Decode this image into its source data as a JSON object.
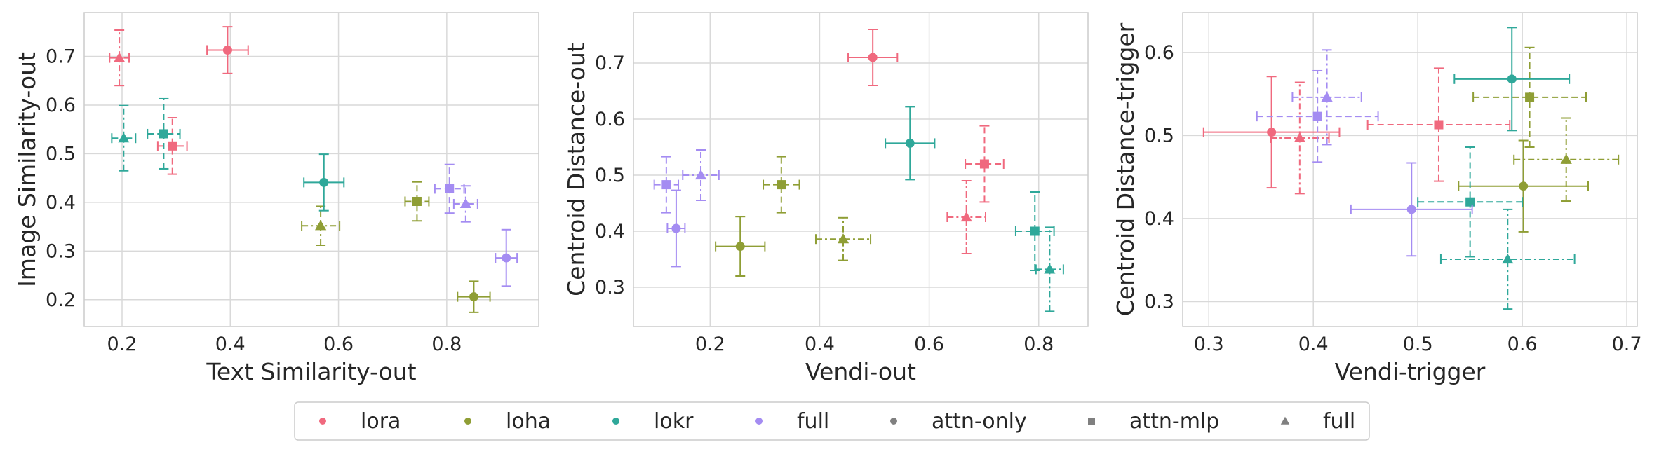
{
  "colors": {
    "lora": "#f0697e",
    "loha": "#8f9e35",
    "lokr": "#2fa89a",
    "full": "#a48cf2",
    "marker_key": "#808080"
  },
  "legend": [
    {
      "label": "lora",
      "marker": "circle",
      "color": "#f0697e"
    },
    {
      "label": "loha",
      "marker": "circle",
      "color": "#8f9e35"
    },
    {
      "label": "lokr",
      "marker": "circle",
      "color": "#2fa89a"
    },
    {
      "label": "full",
      "marker": "circle",
      "color": "#a48cf2"
    },
    {
      "label": "attn-only",
      "marker": "circle",
      "color": "#808080"
    },
    {
      "label": "attn-mlp",
      "marker": "square",
      "color": "#808080"
    },
    {
      "label": "full",
      "marker": "triangle",
      "color": "#808080"
    }
  ],
  "chart_data": [
    {
      "type": "scatter",
      "xlabel": "Text Similarity-out",
      "ylabel": "Image Similarity-out",
      "xlim": [
        0.13,
        0.97
      ],
      "ylim": [
        0.145,
        0.79
      ],
      "xticks": [
        0.2,
        0.4,
        0.6,
        0.8
      ],
      "xticklabels": [
        "0.2",
        "0.4",
        "0.6",
        "0.8"
      ],
      "yticks": [
        0.2,
        0.3,
        0.4,
        0.5,
        0.6,
        0.7
      ],
      "yticklabels": [
        "0.2",
        "0.3",
        "0.4",
        "0.5",
        "0.6",
        "0.7"
      ],
      "grid": true,
      "points": [
        {
          "method": "lora",
          "variant": "attn-only",
          "x": 0.395,
          "y": 0.713,
          "xerr": 0.038,
          "yerr": 0.048
        },
        {
          "method": "lora",
          "variant": "attn-mlp",
          "x": 0.293,
          "y": 0.516,
          "xerr": 0.027,
          "yerr": 0.058
        },
        {
          "method": "lora",
          "variant": "full",
          "x": 0.195,
          "y": 0.697,
          "xerr": 0.018,
          "yerr": 0.057
        },
        {
          "method": "loha",
          "variant": "attn-only",
          "x": 0.85,
          "y": 0.206,
          "xerr": 0.03,
          "yerr": 0.032
        },
        {
          "method": "loha",
          "variant": "attn-mlp",
          "x": 0.745,
          "y": 0.402,
          "xerr": 0.022,
          "yerr": 0.04
        },
        {
          "method": "loha",
          "variant": "full",
          "x": 0.567,
          "y": 0.352,
          "xerr": 0.035,
          "yerr": 0.04
        },
        {
          "method": "lokr",
          "variant": "attn-only",
          "x": 0.573,
          "y": 0.441,
          "xerr": 0.037,
          "yerr": 0.058
        },
        {
          "method": "lokr",
          "variant": "attn-mlp",
          "x": 0.277,
          "y": 0.541,
          "xerr": 0.03,
          "yerr": 0.072
        },
        {
          "method": "lokr",
          "variant": "full",
          "x": 0.203,
          "y": 0.532,
          "xerr": 0.022,
          "yerr": 0.067
        },
        {
          "method": "full",
          "variant": "attn-only",
          "x": 0.91,
          "y": 0.286,
          "xerr": 0.02,
          "yerr": 0.058
        },
        {
          "method": "full",
          "variant": "attn-mlp",
          "x": 0.805,
          "y": 0.428,
          "xerr": 0.027,
          "yerr": 0.05
        },
        {
          "method": "full",
          "variant": "full",
          "x": 0.835,
          "y": 0.397,
          "xerr": 0.022,
          "yerr": 0.037
        }
      ]
    },
    {
      "type": "scatter",
      "xlabel": "Vendi-out",
      "ylabel": "Centroid Distance-out",
      "xlim": [
        0.06,
        0.89
      ],
      "ylim": [
        0.23,
        0.79
      ],
      "xticks": [
        0.2,
        0.4,
        0.6,
        0.8
      ],
      "xticklabels": [
        "0.2",
        "0.4",
        "0.6",
        "0.8"
      ],
      "yticks": [
        0.3,
        0.4,
        0.5,
        0.6,
        0.7
      ],
      "yticklabels": [
        "0.3",
        "0.4",
        "0.5",
        "0.6",
        "0.7"
      ],
      "grid": true,
      "points": [
        {
          "method": "lora",
          "variant": "attn-only",
          "x": 0.497,
          "y": 0.71,
          "xerr": 0.045,
          "yerr": 0.05
        },
        {
          "method": "lora",
          "variant": "attn-mlp",
          "x": 0.701,
          "y": 0.52,
          "xerr": 0.035,
          "yerr": 0.068
        },
        {
          "method": "lora",
          "variant": "full",
          "x": 0.668,
          "y": 0.425,
          "xerr": 0.035,
          "yerr": 0.065
        },
        {
          "method": "loha",
          "variant": "attn-only",
          "x": 0.255,
          "y": 0.373,
          "xerr": 0.045,
          "yerr": 0.053
        },
        {
          "method": "loha",
          "variant": "attn-mlp",
          "x": 0.33,
          "y": 0.483,
          "xerr": 0.033,
          "yerr": 0.05
        },
        {
          "method": "loha",
          "variant": "full",
          "x": 0.443,
          "y": 0.386,
          "xerr": 0.05,
          "yerr": 0.038
        },
        {
          "method": "lokr",
          "variant": "attn-only",
          "x": 0.565,
          "y": 0.557,
          "xerr": 0.045,
          "yerr": 0.065
        },
        {
          "method": "lokr",
          "variant": "attn-mlp",
          "x": 0.793,
          "y": 0.4,
          "xerr": 0.035,
          "yerr": 0.07
        },
        {
          "method": "lokr",
          "variant": "full",
          "x": 0.82,
          "y": 0.332,
          "xerr": 0.025,
          "yerr": 0.075
        },
        {
          "method": "full",
          "variant": "attn-only",
          "x": 0.138,
          "y": 0.405,
          "xerr": 0.016,
          "yerr": 0.068
        },
        {
          "method": "full",
          "variant": "attn-mlp",
          "x": 0.12,
          "y": 0.483,
          "xerr": 0.022,
          "yerr": 0.05
        },
        {
          "method": "full",
          "variant": "full",
          "x": 0.183,
          "y": 0.5,
          "xerr": 0.033,
          "yerr": 0.045
        }
      ]
    },
    {
      "type": "scatter",
      "xlabel": "Vendi-trigger",
      "ylabel": "Centroid Distance-trigger",
      "xlim": [
        0.275,
        0.71
      ],
      "ylim": [
        0.27,
        0.648
      ],
      "xticks": [
        0.3,
        0.4,
        0.5,
        0.6,
        0.7
      ],
      "xticklabels": [
        "0.3",
        "0.4",
        "0.5",
        "0.6",
        "0.7"
      ],
      "yticks": [
        0.3,
        0.4,
        0.5,
        0.6
      ],
      "yticklabels": [
        "0.3",
        "0.4",
        "0.5",
        "0.6"
      ],
      "grid": true,
      "points": [
        {
          "method": "lora",
          "variant": "attn-only",
          "x": 0.36,
          "y": 0.504,
          "xerr": 0.065,
          "yerr": 0.067
        },
        {
          "method": "lora",
          "variant": "attn-mlp",
          "x": 0.52,
          "y": 0.513,
          "xerr": 0.068,
          "yerr": 0.068
        },
        {
          "method": "lora",
          "variant": "full",
          "x": 0.387,
          "y": 0.497,
          "xerr": 0.028,
          "yerr": 0.067
        },
        {
          "method": "loha",
          "variant": "attn-only",
          "x": 0.601,
          "y": 0.439,
          "xerr": 0.062,
          "yerr": 0.055
        },
        {
          "method": "loha",
          "variant": "attn-mlp",
          "x": 0.607,
          "y": 0.546,
          "xerr": 0.054,
          "yerr": 0.06
        },
        {
          "method": "loha",
          "variant": "full",
          "x": 0.642,
          "y": 0.471,
          "xerr": 0.05,
          "yerr": 0.05
        },
        {
          "method": "lokr",
          "variant": "attn-only",
          "x": 0.59,
          "y": 0.568,
          "xerr": 0.055,
          "yerr": 0.062
        },
        {
          "method": "lokr",
          "variant": "attn-mlp",
          "x": 0.55,
          "y": 0.42,
          "xerr": 0.05,
          "yerr": 0.066
        },
        {
          "method": "lokr",
          "variant": "full",
          "x": 0.586,
          "y": 0.351,
          "xerr": 0.064,
          "yerr": 0.06
        },
        {
          "method": "full",
          "variant": "attn-only",
          "x": 0.494,
          "y": 0.411,
          "xerr": 0.058,
          "yerr": 0.056
        },
        {
          "method": "full",
          "variant": "attn-mlp",
          "x": 0.404,
          "y": 0.523,
          "xerr": 0.058,
          "yerr": 0.055
        },
        {
          "method": "full",
          "variant": "full",
          "x": 0.413,
          "y": 0.546,
          "xerr": 0.033,
          "yerr": 0.057
        }
      ]
    }
  ]
}
